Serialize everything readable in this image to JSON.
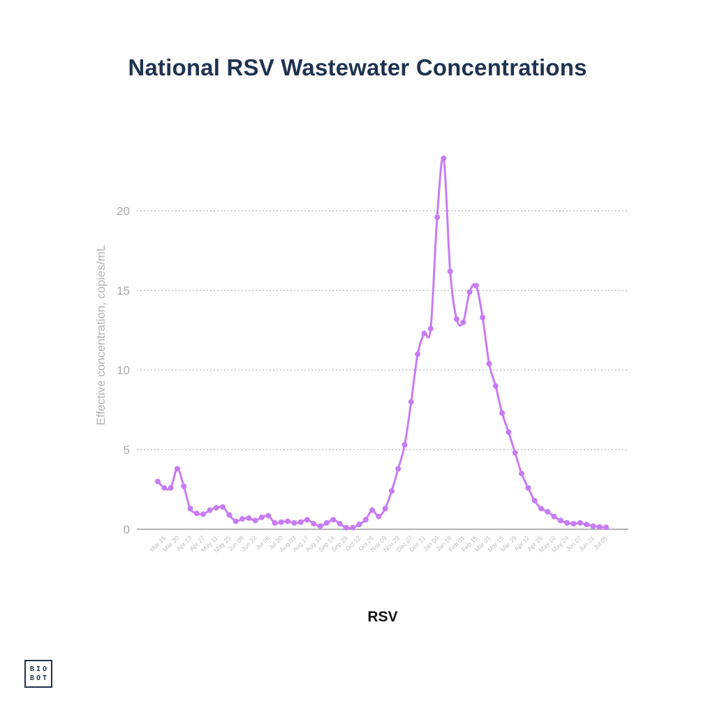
{
  "title": "National RSV Wastewater Concentrations",
  "logo": {
    "line1": "BIO",
    "line2": "BOT"
  },
  "chart_data": {
    "type": "line",
    "title": "National RSV Wastewater Concentrations",
    "xlabel": "",
    "ylabel": "Effective concentration, copies/mL",
    "ylim": [
      0,
      23.5
    ],
    "yticks": [
      0,
      5,
      10,
      15,
      20
    ],
    "grid": "horizontal dotted",
    "color": "#c77cf3",
    "series": [
      {
        "name": "RSV",
        "values": [
          3.0,
          2.6,
          2.6,
          3.8,
          2.7,
          1.3,
          1.0,
          0.95,
          1.2,
          1.35,
          1.4,
          0.9,
          0.5,
          0.65,
          0.7,
          0.55,
          0.75,
          0.85,
          0.4,
          0.45,
          0.5,
          0.4,
          0.45,
          0.6,
          0.35,
          0.2,
          0.4,
          0.6,
          0.35,
          0.1,
          0.1,
          0.3,
          0.6,
          1.2,
          0.8,
          1.3,
          2.4,
          3.8,
          5.3,
          8.0,
          11.0,
          12.3,
          12.6,
          19.6,
          23.3,
          16.2,
          13.2,
          13.0,
          14.9,
          15.3,
          13.3,
          10.4,
          9.0,
          7.3,
          6.1,
          4.8,
          3.5,
          2.6,
          1.8,
          1.3,
          1.1,
          0.8,
          0.55,
          0.4,
          0.35,
          0.4,
          0.3,
          0.2,
          0.15,
          0.12
        ]
      }
    ],
    "x_tick_labels": [
      "Mar 16",
      "Mar 30",
      "Apr 13",
      "Apr 27",
      "May 11",
      "May 25",
      "Jun 08",
      "Jun 22",
      "Jul 06",
      "Jul 20",
      "Aug 03",
      "Aug 17",
      "Aug 31",
      "Sep 14",
      "Sep 28",
      "Oct 12",
      "Oct 26",
      "Nov 09",
      "Nov 23",
      "Dec 07",
      "Dec 21",
      "Jan 04",
      "Jan 18",
      "Feb 01",
      "Feb 15",
      "Mar 01",
      "Mar 15",
      "Mar 29",
      "Apr 12",
      "Apr 26",
      "May 10",
      "May 24",
      "Jun 07",
      "Jun 21",
      "Jul 05"
    ],
    "legend": "RSV"
  }
}
